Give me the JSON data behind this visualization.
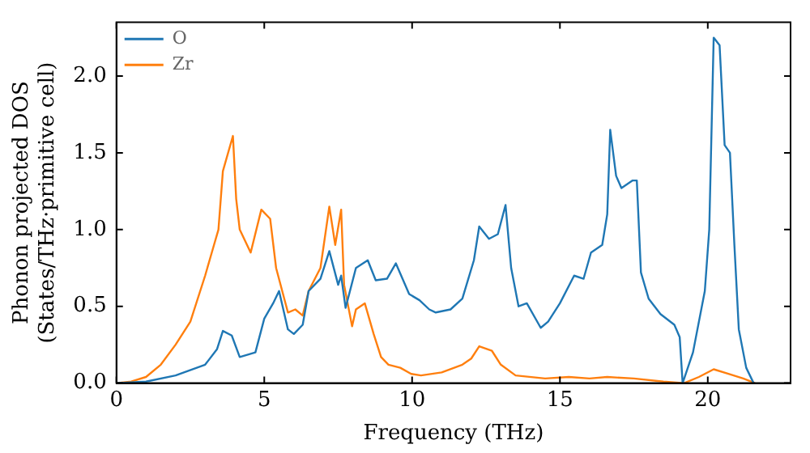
{
  "chart_data": {
    "type": "line",
    "xlabel": "Frequency (THz)",
    "ylabel": "Phonon projected DOS\n(States/THz·primitive cell)",
    "xlim": [
      0,
      22.8
    ],
    "ylim": [
      0,
      2.35
    ],
    "xticks": [
      0,
      5,
      10,
      15,
      20
    ],
    "yticks": [
      {
        "value": 0,
        "label": "0.0"
      },
      0.5,
      {
        "value": 1,
        "label": "1.0"
      },
      1.5,
      {
        "value": 2,
        "label": "2.0"
      }
    ],
    "legend": "top left",
    "grid": false,
    "marker": "none",
    "line_style": "solid",
    "series": [
      {
        "name": "O",
        "color": "#1f77b4",
        "x": [
          0,
          1,
          2,
          3,
          3.4,
          3.6,
          3.9,
          4.17,
          4.7,
          5.0,
          5.3,
          5.5,
          5.8,
          6.0,
          6.3,
          6.5,
          6.9,
          7.2,
          7.5,
          7.6,
          7.75,
          8.1,
          8.5,
          8.77,
          9.15,
          9.45,
          9.9,
          10.25,
          10.58,
          10.8,
          11.3,
          11.7,
          12.09,
          12.27,
          12.6,
          12.9,
          13.16,
          13.35,
          13.6,
          13.88,
          14.35,
          14.6,
          15.0,
          15.48,
          15.8,
          16.05,
          16.43,
          16.6,
          16.7,
          16.9,
          17.08,
          17.46,
          17.6,
          17.74,
          18.0,
          18.4,
          18.87,
          19.05,
          19.15,
          19.5,
          19.9,
          20.05,
          20.2,
          20.4,
          20.57,
          20.75,
          20.9,
          21.05,
          21.3,
          21.55
        ],
        "values": [
          0,
          0.01,
          0.05,
          0.12,
          0.22,
          0.34,
          0.31,
          0.17,
          0.2,
          0.42,
          0.52,
          0.6,
          0.35,
          0.32,
          0.38,
          0.6,
          0.68,
          0.86,
          0.64,
          0.7,
          0.49,
          0.75,
          0.8,
          0.67,
          0.68,
          0.78,
          0.58,
          0.54,
          0.48,
          0.46,
          0.48,
          0.55,
          0.8,
          1.02,
          0.94,
          0.97,
          1.16,
          0.75,
          0.5,
          0.52,
          0.36,
          0.4,
          0.52,
          0.7,
          0.68,
          0.85,
          0.9,
          1.1,
          1.65,
          1.35,
          1.27,
          1.32,
          1.32,
          0.72,
          0.55,
          0.45,
          0.38,
          0.3,
          0,
          0.2,
          0.6,
          1.0,
          2.25,
          2.2,
          1.55,
          1.5,
          0.9,
          0.35,
          0.1,
          0
        ]
      },
      {
        "name": "Zr",
        "color": "#ff7f0e",
        "x": [
          0,
          0.5,
          1,
          1.5,
          2,
          2.5,
          3,
          3.3,
          3.45,
          3.6,
          3.94,
          4.05,
          4.17,
          4.54,
          4.9,
          5.2,
          5.4,
          5.8,
          6.05,
          6.3,
          6.5,
          6.9,
          7.2,
          7.4,
          7.6,
          7.7,
          7.97,
          8.1,
          8.4,
          8.7,
          8.95,
          9.2,
          9.6,
          9.97,
          10.3,
          11.0,
          11.7,
          12.0,
          12.27,
          12.7,
          13.0,
          13.5,
          14.5,
          15.3,
          16.0,
          16.6,
          17.5,
          18.5,
          19.2,
          19.7,
          20.2,
          20.7,
          21.2,
          21.6
        ],
        "values": [
          0,
          0.01,
          0.04,
          0.12,
          0.25,
          0.4,
          0.7,
          0.9,
          1.0,
          1.38,
          1.61,
          1.2,
          1.0,
          0.85,
          1.13,
          1.07,
          0.75,
          0.46,
          0.48,
          0.44,
          0.6,
          0.75,
          1.15,
          0.9,
          1.13,
          0.64,
          0.37,
          0.48,
          0.52,
          0.32,
          0.17,
          0.12,
          0.1,
          0.06,
          0.05,
          0.07,
          0.12,
          0.16,
          0.24,
          0.21,
          0.12,
          0.05,
          0.03,
          0.04,
          0.03,
          0.04,
          0.03,
          0.01,
          0,
          0.04,
          0.09,
          0.06,
          0.03,
          0
        ]
      }
    ]
  }
}
